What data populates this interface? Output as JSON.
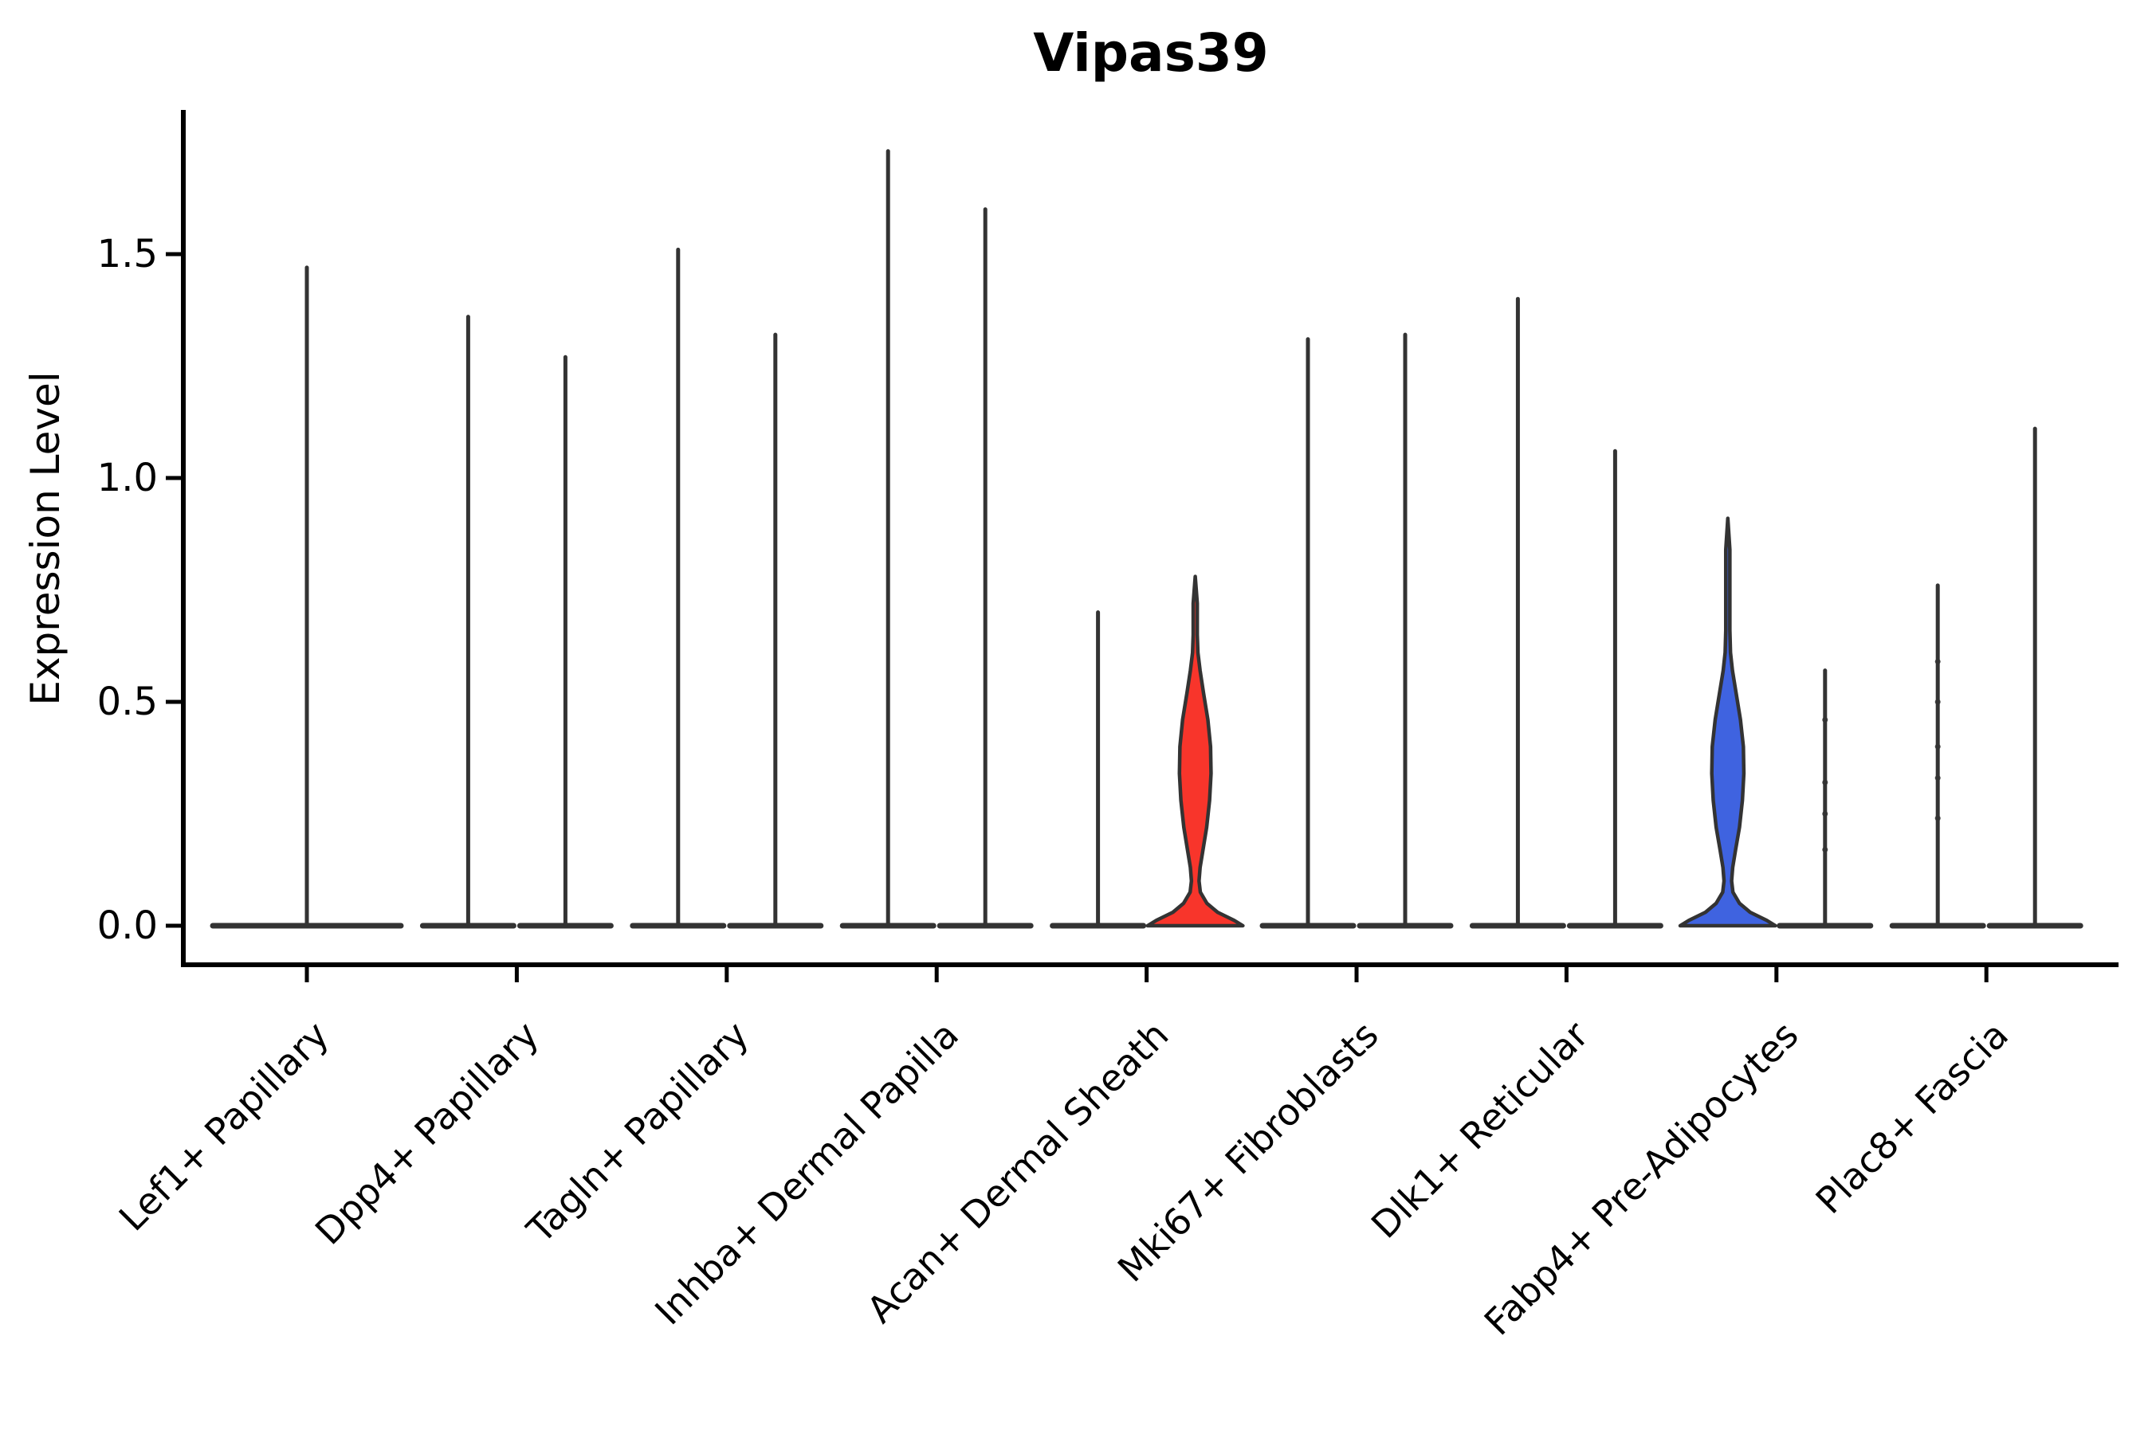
{
  "chart_data": {
    "type": "violin",
    "title": "Vipas39",
    "ylabel": "Expression Level",
    "xlabel": "",
    "ylim": [
      -0.09,
      1.82
    ],
    "grid": false,
    "legend": "none",
    "y_ticks": [
      {
        "value": 0.0,
        "label": "0.0"
      },
      {
        "value": 0.5,
        "label": "0.5"
      },
      {
        "value": 1.0,
        "label": "1.0"
      },
      {
        "value": 1.5,
        "label": "1.5"
      }
    ],
    "categories": [
      "Lef1+ Papillary",
      "Dpp4+ Papillary",
      "Tagln+ Papillary",
      "Inhba+ Dermal Papilla",
      "Acan+ Dermal Sheath",
      "Mki67+ Fibroblasts",
      "Dlk1+ Reticular",
      "Fabp4+ Pre-Adipocytes",
      "Plac8+ Fascia"
    ],
    "colors": {
      "violin_outline": "#333333",
      "axis_spine": "#000000",
      "text": "#000000",
      "acan_violin_fill": "#f8352b",
      "fabp4_violin_fill": "#3f63e0",
      "background": "#ffffff"
    },
    "violins": [
      [
        {
          "slot": "single",
          "shape": "spike",
          "max": 1.47,
          "fill": null,
          "marks": []
        }
      ],
      [
        {
          "slot": "left",
          "shape": "spike",
          "max": 1.36,
          "fill": null,
          "marks": []
        },
        {
          "slot": "right",
          "shape": "spike",
          "max": 1.27,
          "fill": null,
          "marks": []
        }
      ],
      [
        {
          "slot": "left",
          "shape": "spike",
          "max": 1.51,
          "fill": null,
          "marks": []
        },
        {
          "slot": "right",
          "shape": "spike",
          "max": 1.32,
          "fill": null,
          "marks": []
        }
      ],
      [
        {
          "slot": "left",
          "shape": "spike",
          "max": 1.73,
          "fill": null,
          "marks": []
        },
        {
          "slot": "right",
          "shape": "spike",
          "max": 1.6,
          "fill": null,
          "marks": []
        }
      ],
      [
        {
          "slot": "left",
          "shape": "spike",
          "max": 0.7,
          "fill": null,
          "marks": []
        },
        {
          "slot": "right",
          "shape": "violin",
          "max": 0.78,
          "fill": "#f8352b",
          "profile": [
            [
              0.0,
              0.98
            ],
            [
              0.012,
              0.8
            ],
            [
              0.03,
              0.46
            ],
            [
              0.05,
              0.24
            ],
            [
              0.075,
              0.105
            ],
            [
              0.1,
              0.078
            ],
            [
              0.13,
              0.1
            ],
            [
              0.17,
              0.16
            ],
            [
              0.22,
              0.235
            ],
            [
              0.28,
              0.295
            ],
            [
              0.34,
              0.325
            ],
            [
              0.4,
              0.315
            ],
            [
              0.46,
              0.26
            ],
            [
              0.52,
              0.17
            ],
            [
              0.57,
              0.1
            ],
            [
              0.61,
              0.055
            ],
            [
              0.65,
              0.042
            ],
            [
              0.72,
              0.042
            ],
            [
              0.78,
              0.0
            ]
          ],
          "marks": []
        }
      ],
      [
        {
          "slot": "left",
          "shape": "spike",
          "max": 1.31,
          "fill": null,
          "marks": []
        },
        {
          "slot": "right",
          "shape": "spike",
          "max": 1.32,
          "fill": null,
          "marks": []
        }
      ],
      [
        {
          "slot": "left",
          "shape": "spike",
          "max": 1.4,
          "fill": null,
          "marks": []
        },
        {
          "slot": "right",
          "shape": "spike",
          "max": 1.06,
          "fill": null,
          "marks": []
        }
      ],
      [
        {
          "slot": "left",
          "shape": "violin",
          "max": 0.91,
          "fill": "#3f63e0",
          "profile": [
            [
              0.0,
              0.98
            ],
            [
              0.012,
              0.8
            ],
            [
              0.03,
              0.46
            ],
            [
              0.05,
              0.24
            ],
            [
              0.075,
              0.105
            ],
            [
              0.1,
              0.078
            ],
            [
              0.13,
              0.1
            ],
            [
              0.17,
              0.16
            ],
            [
              0.22,
              0.24
            ],
            [
              0.28,
              0.3
            ],
            [
              0.34,
              0.33
            ],
            [
              0.4,
              0.32
            ],
            [
              0.46,
              0.26
            ],
            [
              0.52,
              0.17
            ],
            [
              0.57,
              0.095
            ],
            [
              0.61,
              0.055
            ],
            [
              0.66,
              0.042
            ],
            [
              0.84,
              0.042
            ],
            [
              0.91,
              0.0
            ]
          ],
          "marks": []
        },
        {
          "slot": "right",
          "shape": "spike",
          "max": 0.57,
          "fill": null,
          "marks": [
            0.46,
            0.32,
            0.25,
            0.17
          ]
        }
      ],
      [
        {
          "slot": "left",
          "shape": "spike",
          "max": 0.76,
          "fill": null,
          "marks": [
            0.59,
            0.5,
            0.4,
            0.33,
            0.24
          ]
        },
        {
          "slot": "right",
          "shape": "spike",
          "max": 1.11,
          "fill": null,
          "marks": []
        }
      ]
    ]
  }
}
